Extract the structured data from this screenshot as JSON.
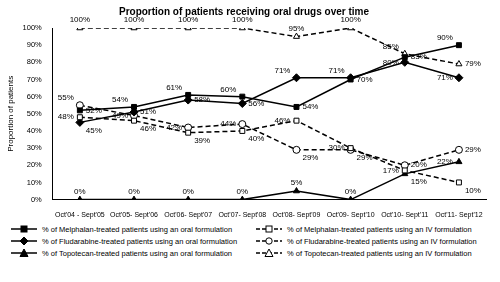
{
  "chart_data": {
    "type": "line",
    "title": "Proportion of patients receiving oral drugs over time",
    "y_label": "Proportion of patients",
    "categories": [
      "Oct'04 - Sept'05",
      "Oct'05- Sept'06",
      "Oct'06- Sept'07",
      "Oct'07- Sept'08",
      "Oct'08- Sept'09",
      "Oct'09- Sept'10",
      "Oct'10- Sept'11",
      "Oct'11- Sept'12"
    ],
    "ylim": [
      0,
      100
    ],
    "yticks": [
      {
        "value": 0,
        "label": "0%"
      },
      {
        "value": 10,
        "label": "10%"
      },
      {
        "value": 20,
        "label": "20%"
      },
      {
        "value": 30,
        "label": "30%"
      },
      {
        "value": 40,
        "label": "40%"
      },
      {
        "value": 50,
        "label": "50%"
      },
      {
        "value": 60,
        "label": "60%"
      },
      {
        "value": 70,
        "label": "70%"
      },
      {
        "value": 80,
        "label": "80%"
      },
      {
        "value": 90,
        "label": "90%"
      },
      {
        "value": 100,
        "label": "100%"
      }
    ],
    "grid": false,
    "legend": "bottom",
    "data_labels": true,
    "series": [
      {
        "name": "% of Melphalan-treated patients using an oral formulation",
        "color": "#000000",
        "marker": "square",
        "line_style": "solid",
        "values": [
          52,
          54,
          61,
          60,
          54,
          70,
          83,
          90
        ],
        "value_labels": [
          "52%",
          "54%",
          "61%",
          "60%",
          "54%",
          "70%",
          "83%",
          "90%"
        ]
      },
      {
        "name": "% of Melphalan-treated patients using an IV formulation",
        "color": "#000000",
        "marker": "square_open",
        "line_style": "dashed",
        "values": [
          48,
          46,
          39,
          40,
          46,
          30,
          17,
          10
        ],
        "value_labels": [
          "48%",
          "46%",
          "39%",
          "40%",
          "46%",
          "30%",
          "17%",
          "10%"
        ]
      },
      {
        "name": "% of Fludarabine-treated patients using an oral formulation",
        "color": "#000000",
        "marker": "diamond",
        "line_style": "solid",
        "values": [
          45,
          51,
          58,
          56,
          71,
          71,
          80,
          71
        ],
        "value_labels": [
          "45%",
          "51%",
          "58%",
          "56%",
          "71%",
          "71%",
          "80%",
          "71%"
        ]
      },
      {
        "name": "% of Fludarabine-treated patients using an IV formulation",
        "color": "#000000",
        "marker": "circle_open",
        "line_style": "dashed",
        "values": [
          55,
          49,
          42,
          44,
          29,
          29,
          20,
          29
        ],
        "value_labels": [
          "55%",
          "49%",
          "42%",
          "44%",
          "29%",
          "29%",
          "20%",
          "29%"
        ]
      },
      {
        "name": "% of Topotecan-treated patients using an oral formulation",
        "color": "#000000",
        "marker": "triangle",
        "line_style": "solid",
        "values": [
          0,
          0,
          0,
          0,
          5,
          0,
          15,
          22
        ],
        "value_labels": [
          "0%",
          "0%",
          "0%",
          "0%",
          "5%",
          "0%",
          "15%",
          "22%"
        ]
      },
      {
        "name": "% of Topotecan-treated patients using an IV formulation",
        "color": "#000000",
        "marker": "triangle_open",
        "line_style": "dashed",
        "values": [
          100,
          100,
          100,
          100,
          95,
          100,
          85,
          79
        ],
        "value_labels": [
          "100%",
          "100%",
          "100%",
          "100%",
          "95%",
          "100%",
          "85%",
          "79%"
        ]
      }
    ]
  }
}
